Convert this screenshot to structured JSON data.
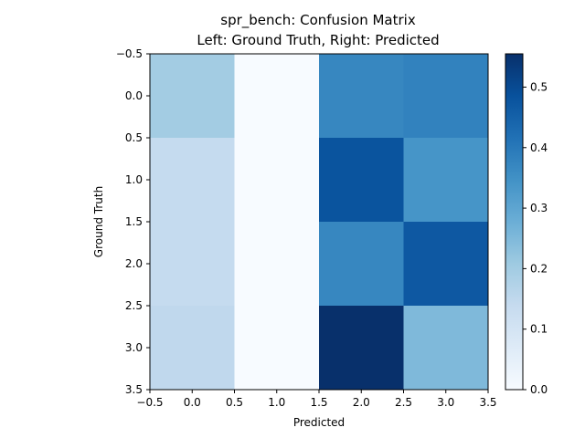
{
  "chart_data": {
    "type": "heatmap",
    "title": "spr_bench: Confusion Matrix",
    "subtitle": "Left: Ground Truth, Right: Predicted",
    "xlabel": "Predicted",
    "ylabel": "Ground Truth",
    "xlim": [
      -0.5,
      3.5
    ],
    "ylim": [
      3.5,
      -0.5
    ],
    "x_ticks": [
      "−0.5",
      "0.0",
      "0.5",
      "1.0",
      "1.5",
      "2.0",
      "2.5",
      "3.0",
      "3.5"
    ],
    "y_ticks": [
      "−0.5",
      "0.0",
      "0.5",
      "1.0",
      "1.5",
      "2.0",
      "2.5",
      "3.0",
      "3.5"
    ],
    "matrix": [
      [
        0.2,
        0.0,
        0.37,
        0.38
      ],
      [
        0.14,
        0.0,
        0.48,
        0.34
      ],
      [
        0.14,
        0.0,
        0.37,
        0.47
      ],
      [
        0.15,
        0.0,
        0.56,
        0.25
      ]
    ],
    "colorbar": {
      "colormap": "Blues",
      "range": [
        0.0,
        0.555
      ],
      "ticks": [
        "0.0",
        "0.1",
        "0.2",
        "0.3",
        "0.4",
        "0.5"
      ]
    },
    "grid": false
  }
}
